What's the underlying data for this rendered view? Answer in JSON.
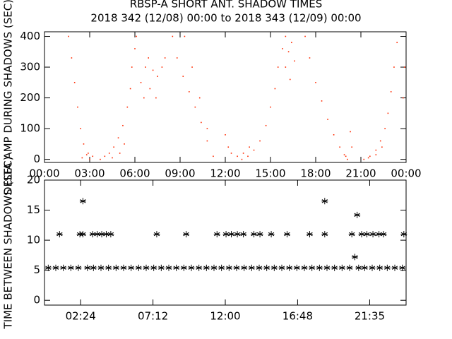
{
  "chart_data": [
    {
      "type": "scatter",
      "title": "RBSP-A SHORT ANT. SHADOW TIMES",
      "subtitle": "2018 342 (12/08) 00:00 to 2018 343 (12/09) 00:00",
      "ylabel": "DELTA AMP DURING SHADOWS (SEC)",
      "marker": "dot",
      "x": [
        1.6,
        1.8,
        2.0,
        2.2,
        2.4,
        2.6,
        2.8,
        3.0,
        2.5,
        2.9,
        3.2,
        3.7,
        4.0,
        4.3,
        4.6,
        4.9,
        5.2,
        5.5,
        5.7,
        5.8,
        6.0,
        6.1,
        4.5,
        5.0,
        5.3,
        6.4,
        6.7,
        6.9,
        7.2,
        7.5,
        7.8,
        8.0,
        6.6,
        7.0,
        7.4,
        8.5,
        8.8,
        9.2,
        9.6,
        10.0,
        10.4,
        10.8,
        11.2,
        9.3,
        9.8,
        10.3,
        10.8,
        12.0,
        12.2,
        12.4,
        13.1,
        13.5,
        13.9,
        14.3,
        14.7,
        15.0,
        15.3,
        15.5,
        15.8,
        16.0,
        12.8,
        13.2,
        13.6,
        16.0,
        16.2,
        16.4,
        16.6,
        16.3,
        17.3,
        17.6,
        18.0,
        18.4,
        18.8,
        19.2,
        19.6,
        20.0,
        20.1,
        19.9,
        20.3,
        20.4,
        21.2,
        21.6,
        22.0,
        22.3,
        22.6,
        22.8,
        23.0,
        23.2,
        23.4,
        21.5,
        22.0,
        22.4,
        23.8,
        23.9
      ],
      "series": [
        {
          "color": "#ff2a00",
          "values": [
            400,
            330,
            250,
            170,
            100,
            50,
            15,
            0,
            5,
            20,
            10,
            0,
            10,
            20,
            40,
            70,
            110,
            170,
            230,
            300,
            360,
            400,
            5,
            20,
            50,
            250,
            300,
            330,
            290,
            270,
            300,
            330,
            200,
            230,
            200,
            400,
            330,
            270,
            220,
            170,
            120,
            60,
            10,
            400,
            300,
            200,
            100,
            80,
            40,
            20,
            0,
            10,
            30,
            60,
            110,
            170,
            230,
            300,
            360,
            400,
            10,
            20,
            40,
            300,
            350,
            380,
            320,
            260,
            400,
            330,
            250,
            190,
            130,
            80,
            40,
            10,
            0,
            15,
            90,
            40,
            0,
            10,
            30,
            60,
            100,
            150,
            220,
            300,
            380,
            5,
            15,
            40,
            200,
            300
          ]
        }
      ],
      "xlim": [
        0,
        24
      ],
      "ylim": [
        -10,
        415
      ],
      "xticks": [
        {
          "value": 0,
          "label": "00:00"
        },
        {
          "value": 3,
          "label": "03:00"
        },
        {
          "value": 6,
          "label": "06:00"
        },
        {
          "value": 9,
          "label": "09:00"
        },
        {
          "value": 12,
          "label": "12:00"
        },
        {
          "value": 15,
          "label": "15:00"
        },
        {
          "value": 18,
          "label": "18:00"
        },
        {
          "value": 21,
          "label": "21:00"
        },
        {
          "value": 24,
          "label": "00:00"
        }
      ],
      "yticks": [
        0,
        100,
        200,
        300,
        400
      ]
    },
    {
      "type": "scatter",
      "ylabel": "TIME BETWEEN SHADOWS (SEC)",
      "marker": "star",
      "x": [
        0.25,
        0.75,
        1.25,
        1.75,
        2.25,
        2.85,
        3.25,
        3.75,
        4.25,
        4.75,
        5.25,
        5.75,
        6.25,
        6.75,
        7.25,
        7.75,
        8.25,
        8.75,
        9.25,
        9.75,
        10.25,
        10.75,
        11.25,
        11.75,
        12.25,
        12.75,
        13.25,
        13.75,
        14.25,
        14.75,
        15.25,
        15.75,
        16.25,
        16.75,
        17.25,
        17.75,
        18.25,
        18.75,
        19.25,
        19.75,
        20.25,
        20.85,
        21.25,
        21.75,
        22.25,
        22.75,
        23.25,
        23.75,
        1.0,
        2.35,
        2.55,
        3.2,
        3.5,
        3.8,
        4.1,
        4.4,
        7.45,
        9.4,
        11.45,
        12.05,
        12.4,
        12.8,
        13.2,
        13.9,
        14.3,
        15.05,
        16.1,
        17.6,
        18.6,
        20.4,
        21.05,
        21.4,
        21.8,
        22.2,
        22.5,
        23.85,
        2.55,
        18.6,
        20.75,
        20.6
      ],
      "series": [
        {
          "color": "#000000",
          "values": [
            5.4,
            5.4,
            5.4,
            5.4,
            5.4,
            5.4,
            5.4,
            5.4,
            5.4,
            5.4,
            5.4,
            5.4,
            5.4,
            5.4,
            5.4,
            5.4,
            5.4,
            5.4,
            5.4,
            5.4,
            5.4,
            5.4,
            5.4,
            5.4,
            5.4,
            5.4,
            5.4,
            5.4,
            5.4,
            5.4,
            5.4,
            5.4,
            5.4,
            5.4,
            5.4,
            5.4,
            5.4,
            5.4,
            5.4,
            5.4,
            5.4,
            5.4,
            5.4,
            5.4,
            5.4,
            5.4,
            5.4,
            5.4,
            11,
            11,
            11,
            11,
            11,
            11,
            11,
            11,
            11,
            11,
            11,
            11,
            11,
            11,
            11,
            11,
            11,
            11,
            11,
            11,
            11,
            11,
            11,
            11,
            11,
            11,
            11,
            11,
            16.5,
            16.5,
            14.2,
            7.2
          ]
        }
      ],
      "xlim": [
        0,
        24
      ],
      "ylim": [
        -0.8,
        20
      ],
      "xticks": [
        {
          "value": 2.4,
          "label": "02:24"
        },
        {
          "value": 7.2,
          "label": "07:12"
        },
        {
          "value": 12,
          "label": "12:00"
        },
        {
          "value": 16.8,
          "label": "16:48"
        },
        {
          "value": 21.5833,
          "label": "21:35"
        }
      ],
      "yticks": [
        0,
        5,
        10,
        15,
        20
      ]
    }
  ]
}
